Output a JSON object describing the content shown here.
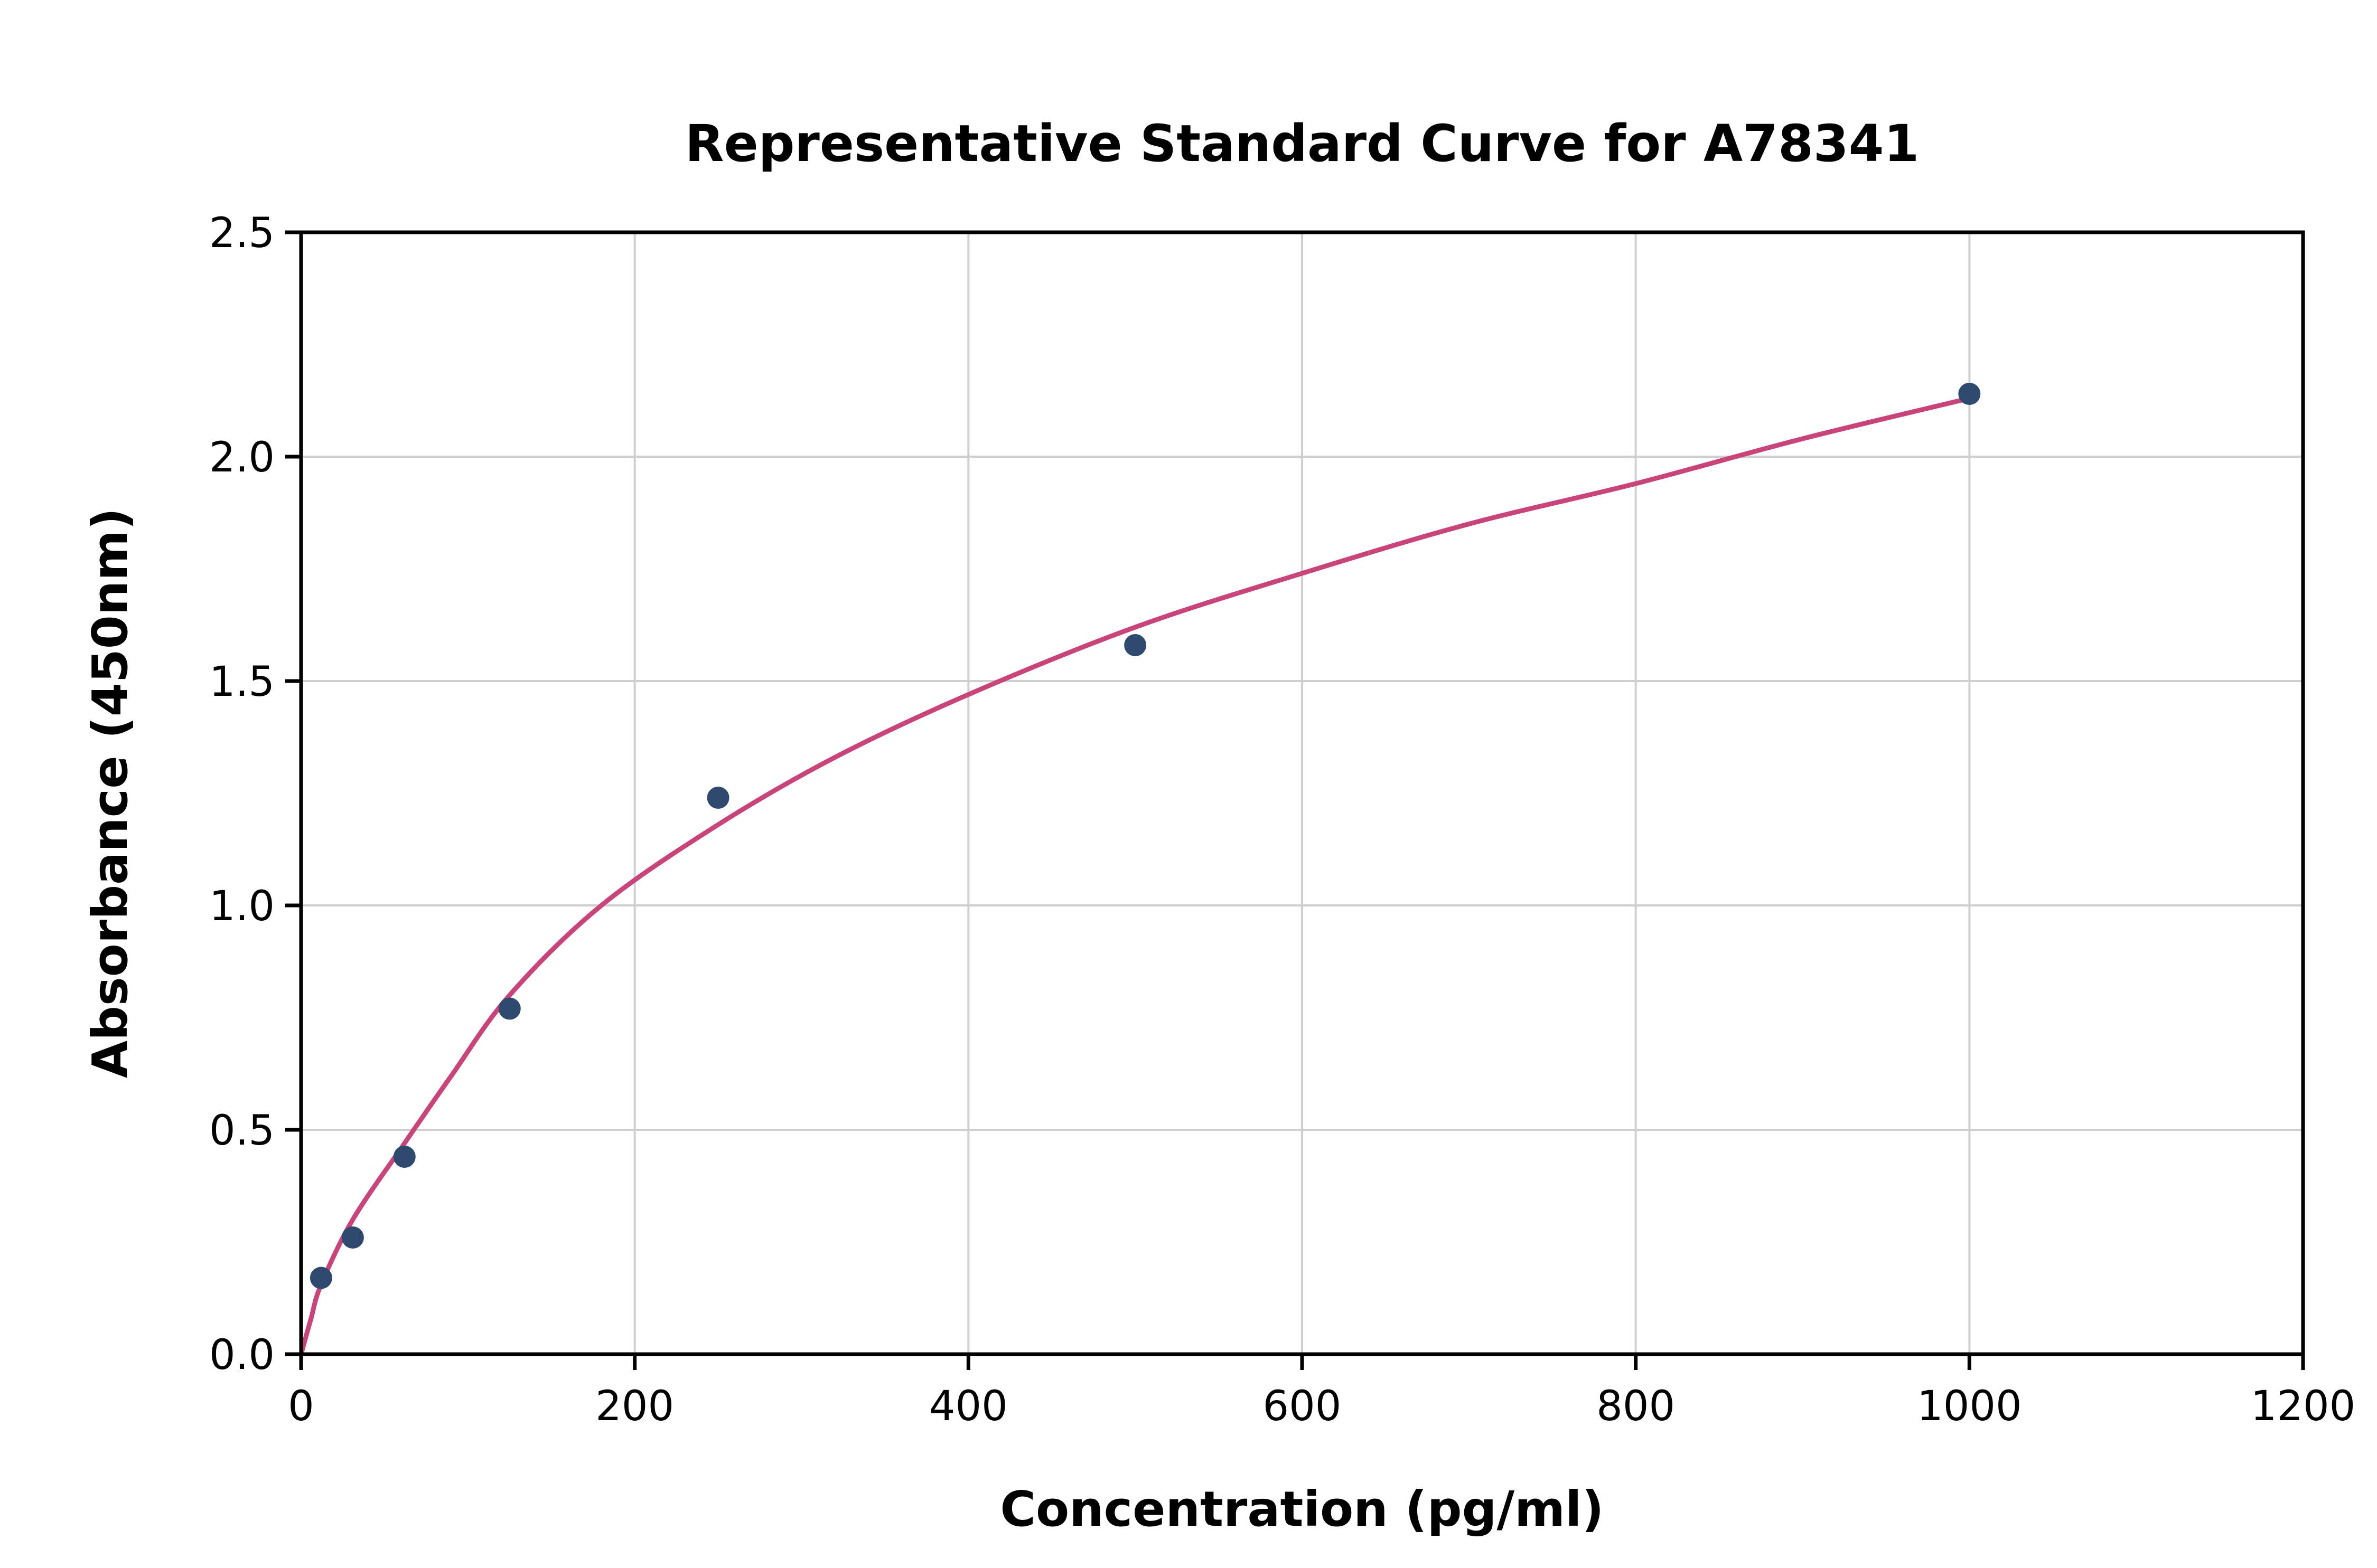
{
  "chart_data": {
    "type": "scatter",
    "title": "Representative Standard Curve for A78341",
    "xlabel": "Concentration (pg/ml)",
    "ylabel": "Absorbance (450nm)",
    "xlim": [
      0,
      1200
    ],
    "ylim": [
      0,
      2.5
    ],
    "x_ticks": [
      0,
      200,
      400,
      600,
      800,
      1000,
      1200
    ],
    "x_tick_labels": [
      "0",
      "200",
      "400",
      "600",
      "800",
      "1000",
      "1200"
    ],
    "y_ticks": [
      0,
      0.5,
      1.0,
      1.5,
      2.0,
      2.5
    ],
    "y_tick_labels": [
      "0.0",
      "0.5",
      "1.0",
      "1.5",
      "2.0",
      "2.5"
    ],
    "grid": true,
    "legend": "none",
    "points": [
      [
        12,
        0.17
      ],
      [
        31,
        0.26
      ],
      [
        62,
        0.44
      ],
      [
        125,
        0.77
      ],
      [
        250,
        1.24
      ],
      [
        500,
        1.58
      ],
      [
        1000,
        2.14
      ]
    ],
    "curve_points": [
      [
        0,
        0.0
      ],
      [
        6,
        0.08
      ],
      [
        12,
        0.155
      ],
      [
        31,
        0.3
      ],
      [
        62,
        0.47
      ],
      [
        90,
        0.62
      ],
      [
        125,
        0.8
      ],
      [
        180,
        1.0
      ],
      [
        250,
        1.18
      ],
      [
        320,
        1.33
      ],
      [
        400,
        1.47
      ],
      [
        500,
        1.62
      ],
      [
        600,
        1.74
      ],
      [
        700,
        1.85
      ],
      [
        800,
        1.94
      ],
      [
        900,
        2.04
      ],
      [
        1000,
        2.13
      ]
    ],
    "colors": {
      "curve": "#c9447a",
      "points": "#2e4a6e",
      "grid": "#cfcfcf",
      "axis": "#000000",
      "background": "#ffffff"
    }
  }
}
